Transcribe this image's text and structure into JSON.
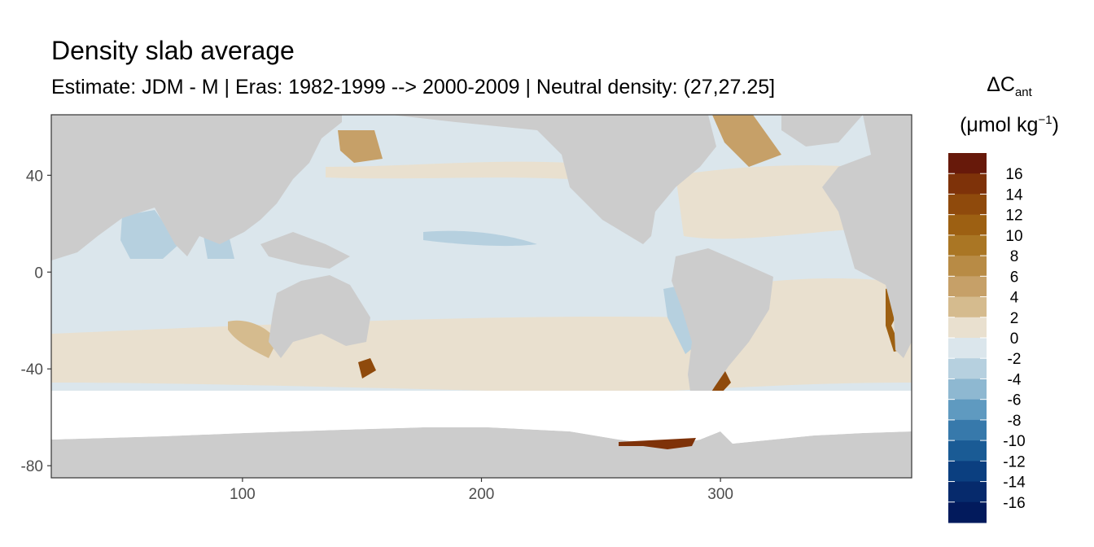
{
  "chart_data": {
    "type": "heatmap",
    "title": "Density slab average",
    "subtitle": "Estimate: JDM - M | Eras: 1982-1999 --> 2000-2009 | Neutral density: (27,27.25]",
    "xlabel": "",
    "ylabel": "",
    "xlim": [
      20,
      380
    ],
    "ylim": [
      -85,
      65
    ],
    "x_ticks": [
      100,
      200,
      300
    ],
    "y_ticks": [
      40,
      0,
      -40,
      -80
    ],
    "grid": true,
    "legend": {
      "placement": "right",
      "title_main": "ΔC",
      "title_sub": "ant",
      "unit_pre": "(μmol kg",
      "unit_sup": "−1",
      "unit_post": ")",
      "labels": [
        "16",
        "14",
        "12",
        "10",
        "8",
        "6",
        "4",
        "2",
        "0",
        "-2",
        "-4",
        "-6",
        "-8",
        "-10",
        "-12",
        "-14",
        "-16"
      ],
      "colors": [
        "#67190a",
        "#7e3209",
        "#8f4a0c",
        "#9d6012",
        "#aa7624",
        "#b88b45",
        "#c6a068",
        "#d5bb8e",
        "#e9e0cf",
        "#dbe6ec",
        "#b6d0df",
        "#8eb8d1",
        "#5f9ac0",
        "#3779ab",
        "#1a5b95",
        "#0b3f80",
        "#062a6c",
        "#021a5c"
      ]
    },
    "values_description": "DeltaC_ant (μmol kg-1) per 1° cell: mostly -2..2 in open ocean; +2..4 in subtropical bands; -4..-2 in Arabian Sea and equatorial Pacific; up to +16 at Tasmania, Patagonia, Weddell shelf, SW Africa, Japan and Labrador Sea",
    "features": [
      {
        "name": "Japan / NW Pacific",
        "lon": 155,
        "lat": 52,
        "value": 7
      },
      {
        "name": "Labrador / Irminger Sea",
        "lon": 325,
        "lat": 55,
        "value": 5
      },
      {
        "name": "Tasmania",
        "lon": 152,
        "lat": -40,
        "value": 14
      },
      {
        "name": "Patagonian shelf",
        "lon": 300,
        "lat": -45,
        "value": 14
      },
      {
        "name": "SW Africa shelf",
        "lon": 373,
        "lat": -10,
        "value": 12
      },
      {
        "name": "Weddell / Antarctic shelf",
        "lon": 275,
        "lat": -72,
        "value": 16
      },
      {
        "name": "Southern Australia",
        "lon": 130,
        "lat": -30,
        "value": 4
      },
      {
        "name": "Arabian Sea",
        "lon": 62,
        "lat": 15,
        "value": -3
      },
      {
        "name": "Bay of Bengal",
        "lon": 88,
        "lat": 12,
        "value": -3
      },
      {
        "name": "Equatorial Pacific",
        "lon": 200,
        "lat": 15,
        "value": -3
      },
      {
        "name": "Eastern Pacific off S. America",
        "lon": 285,
        "lat": -30,
        "value": -3
      }
    ]
  }
}
